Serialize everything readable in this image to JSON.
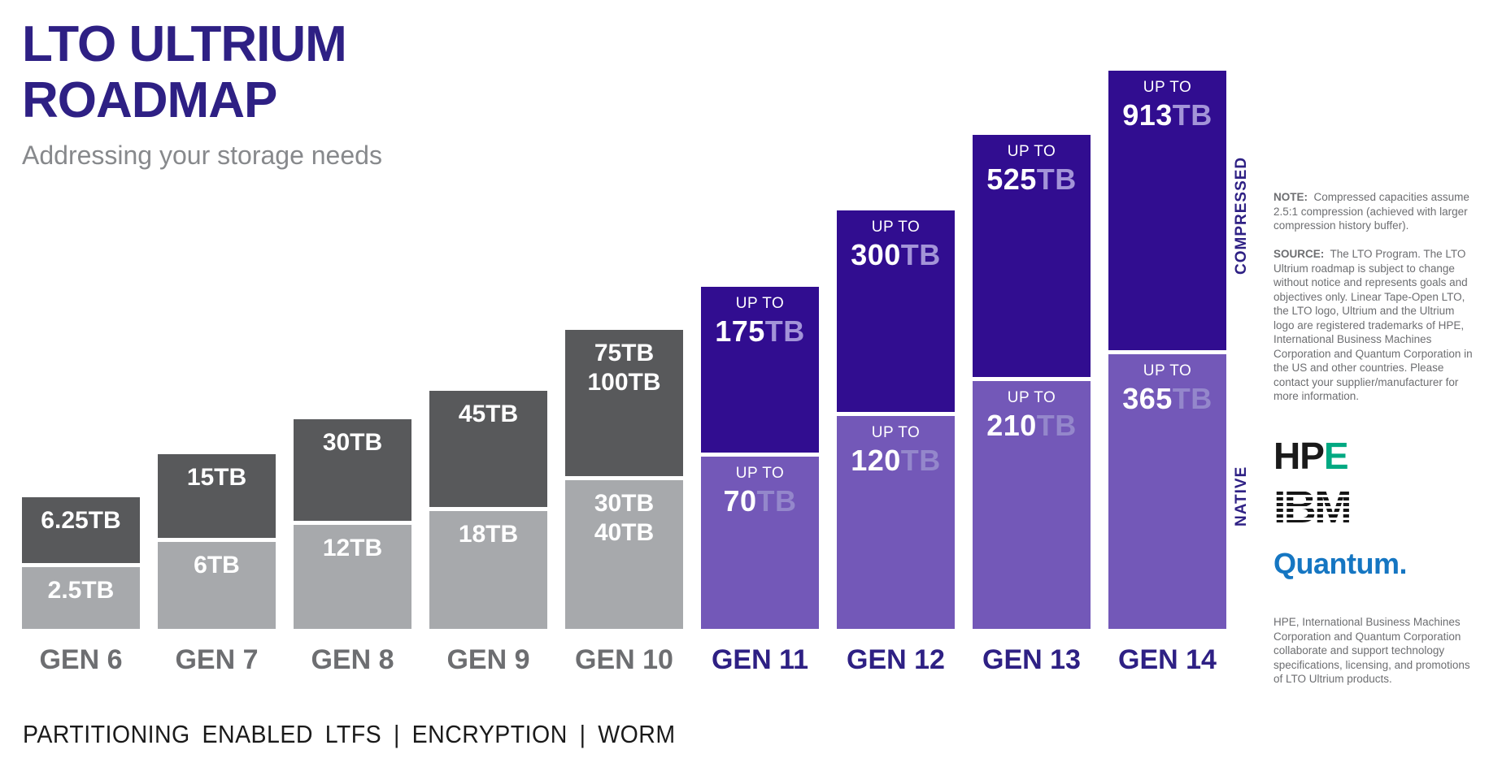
{
  "header": {
    "title_line1": "LTO ULTRIUM",
    "title_line2": "ROADMAP",
    "subtitle": "Addressing your storage needs"
  },
  "axis": {
    "compressed_label": "COMPRESSED",
    "native_label": "NATIVE"
  },
  "chart_data": {
    "type": "bar",
    "stacked": true,
    "categories": [
      "GEN 6",
      "GEN 7",
      "GEN 8",
      "GEN 9",
      "GEN 10",
      "GEN 11",
      "GEN 12",
      "GEN 13",
      "GEN 14"
    ],
    "series": [
      {
        "name": "NATIVE (TB)",
        "values": [
          2.5,
          6,
          12,
          18,
          "30-40",
          70,
          120,
          210,
          365
        ]
      },
      {
        "name": "COMPRESSED (TB)",
        "values": [
          6.25,
          15,
          30,
          45,
          "75-100",
          175,
          300,
          525,
          913
        ]
      }
    ],
    "value_unit": "TB",
    "legend_position": "right-vertical-words",
    "grid": false,
    "bars": [
      {
        "gen": "GEN 6",
        "theme": "gray",
        "compressed": {
          "lines": [
            "6.25TB"
          ]
        },
        "native": {
          "lines": [
            "2.5TB"
          ]
        },
        "compressed_h": 81,
        "native_h": 76
      },
      {
        "gen": "GEN 7",
        "theme": "gray",
        "compressed": {
          "lines": [
            "15TB"
          ]
        },
        "native": {
          "lines": [
            "6TB"
          ]
        },
        "compressed_h": 103,
        "native_h": 107
      },
      {
        "gen": "GEN 8",
        "theme": "gray",
        "compressed": {
          "lines": [
            "30TB"
          ]
        },
        "native": {
          "lines": [
            "12TB"
          ]
        },
        "compressed_h": 125,
        "native_h": 128
      },
      {
        "gen": "GEN 9",
        "theme": "gray",
        "compressed": {
          "lines": [
            "45TB"
          ]
        },
        "native": {
          "lines": [
            "18TB"
          ]
        },
        "compressed_h": 143,
        "native_h": 145
      },
      {
        "gen": "GEN 10",
        "theme": "gray",
        "compressed": {
          "lines": [
            "75TB",
            "100TB"
          ]
        },
        "native": {
          "lines": [
            "30TB",
            "40TB"
          ]
        },
        "compressed_h": 180,
        "native_h": 183
      },
      {
        "gen": "GEN 11",
        "theme": "purple",
        "compressed": {
          "prefix": "UP TO",
          "value": "175",
          "unit": "TB"
        },
        "native": {
          "prefix": "UP TO",
          "value": "70",
          "unit": "TB"
        },
        "compressed_h": 204,
        "native_h": 212
      },
      {
        "gen": "GEN 12",
        "theme": "purple",
        "compressed": {
          "prefix": "UP TO",
          "value": "300",
          "unit": "TB"
        },
        "native": {
          "prefix": "UP TO",
          "value": "120",
          "unit": "TB"
        },
        "compressed_h": 248,
        "native_h": 262
      },
      {
        "gen": "GEN 13",
        "theme": "purple",
        "compressed": {
          "prefix": "UP TO",
          "value": "525",
          "unit": "TB"
        },
        "native": {
          "prefix": "UP TO",
          "value": "210",
          "unit": "TB"
        },
        "compressed_h": 298,
        "native_h": 305
      },
      {
        "gen": "GEN 14",
        "theme": "purple",
        "compressed": {
          "prefix": "UP TO",
          "value": "913",
          "unit": "TB"
        },
        "native": {
          "prefix": "UP TO",
          "value": "365",
          "unit": "TB"
        },
        "compressed_h": 344,
        "native_h": 338
      }
    ]
  },
  "notes": {
    "note_label": "NOTE:",
    "note_text": "Compressed capacities assume 2.5:1 compression (achieved with larger compression history buffer).",
    "source_label": "SOURCE:",
    "source_text": "The LTO Program. The LTO Ultrium roadmap is subject to change without notice and represents goals and objectives only. Linear Tape-Open LTO, the LTO logo, Ultrium and the Ultrium logo are registered trademarks of HPE, International Business Machines Corporation and Quantum Corporation in the US and other countries. Please contact your supplier/manufacturer for more information.",
    "collaboration_text": "HPE, International Business Machines Corporation and Quantum Corporation collaborate and support technology specifications, licensing, and promotions of LTO Ultrium products."
  },
  "logos": {
    "hpe_black": "HP",
    "hpe_green": "E",
    "ibm": "IBM",
    "quantum": "Quantum."
  },
  "footer": {
    "features": "PARTITIONING ENABLED LTFS | ENCRYPTION | WORM"
  },
  "colors": {
    "title": "#2e2084",
    "subtitle": "#87898c",
    "gray_text": "#6d6e71",
    "dark_gray": "#58595b",
    "light_gray": "#a7a9ac",
    "dark_purple": "#310d90",
    "mid_purple": "#7358b8",
    "compressed_unit_text": "#a394d8",
    "native_unit_text": "#9487cb",
    "hpe_green": "#01a982",
    "quantum_blue": "#1576c2"
  }
}
